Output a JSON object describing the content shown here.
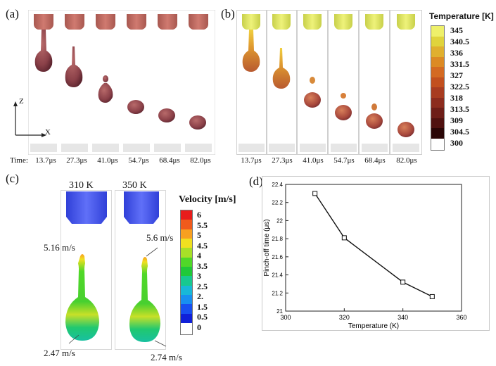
{
  "panels": {
    "a": {
      "label": "(a)"
    },
    "b": {
      "label": "(b)"
    },
    "c": {
      "label": "(c)"
    },
    "d": {
      "label": "(d)"
    }
  },
  "axes_triad": {
    "z": "Z",
    "x": "X"
  },
  "time_row": {
    "caption": "Time:",
    "a_times": [
      "13.7μs",
      "27.3μs",
      "41.0μs",
      "54.7μs",
      "68.4μs",
      "82.0μs"
    ],
    "b_times": [
      "13.7μs",
      "27.3μs",
      "41.0μs",
      "54.7μs",
      "68.4μs",
      "82.0μs"
    ]
  },
  "temperature_colorbar": {
    "title": "Temperature [K]",
    "ticks": [
      "345",
      "340.5",
      "336",
      "331.5",
      "327",
      "322.5",
      "318",
      "313.5",
      "309",
      "304.5",
      "300"
    ],
    "colors": [
      "#eef06a",
      "#e0d43c",
      "#e0b02e",
      "#dc8a24",
      "#d46a22",
      "#c2501e",
      "#a83c20",
      "#8c2c1e",
      "#6e1e18",
      "#501210",
      "#2a0606"
    ]
  },
  "velocity_panel": {
    "title": "Velocity [m/s]",
    "left_case": "310 K",
    "right_case": "350 K",
    "ticks": [
      "6",
      "5.5",
      "5",
      "4.5",
      "4",
      "3.5",
      "3",
      "2.5",
      "2.",
      "1.5",
      "0.5",
      "0"
    ],
    "colors": [
      "#e81c1c",
      "#f05a1c",
      "#f8a020",
      "#f0e020",
      "#a8e028",
      "#50d828",
      "#20c838",
      "#18c890",
      "#18b8d8",
      "#1890f0",
      "#1850f0",
      "#1020d8"
    ],
    "left_tip_speed": "5.16 m/s",
    "left_bottom_speed": "2.47 m/s",
    "right_tip_speed": "5.6 m/s",
    "right_bottom_speed": "2.74 m/s"
  },
  "chart_data": {
    "type": "line",
    "title": "",
    "xlabel": "Temperature (K)",
    "ylabel": "Pinch-off time (μs)",
    "xlim": [
      300,
      360
    ],
    "ylim": [
      21,
      22.4
    ],
    "xticks": [
      "300",
      "320",
      "340",
      "360"
    ],
    "yticks": [
      "21",
      "21.2",
      "21.4",
      "21.6",
      "21.8",
      "22",
      "22.2",
      "22.4"
    ],
    "series": [
      {
        "name": "Pinch-off time",
        "x": [
          310,
          320,
          340,
          350
        ],
        "values": [
          22.3,
          21.81,
          21.32,
          21.16
        ]
      }
    ]
  }
}
